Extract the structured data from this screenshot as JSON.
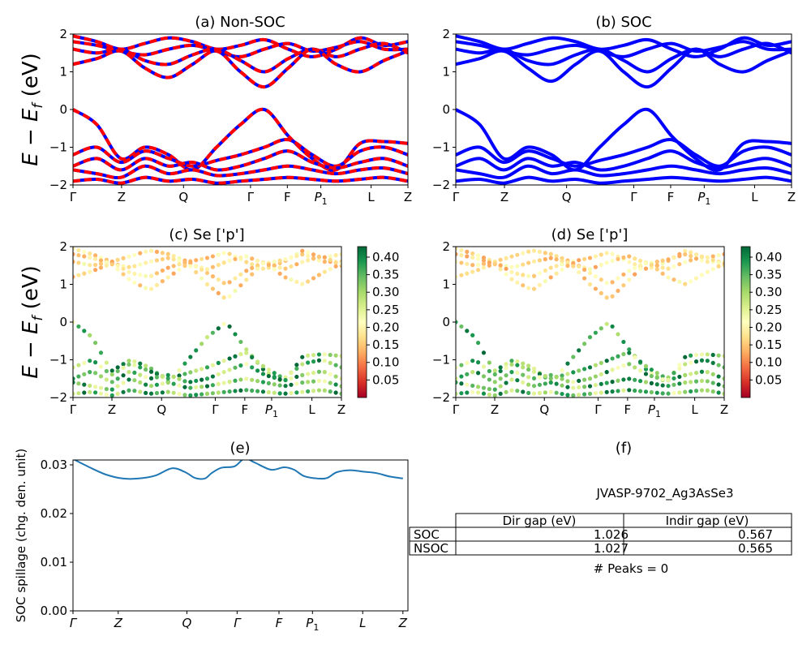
{
  "band_ylabel": "E − E",
  "band_ylabel_sub": "f",
  "band_ylabel_unit": " (eV)",
  "chart_data": [
    {
      "id": "a",
      "type": "line",
      "title": "(a) Non-SOC",
      "ylim": [
        -2,
        2
      ],
      "yticks": [
        -2,
        -1,
        0,
        1,
        2
      ],
      "kpoint_labels": [
        "Γ",
        "Z",
        "Q",
        "Γ",
        "F",
        "P",
        "L",
        "Z"
      ],
      "kpoint_sub": [
        "",
        "",
        "",
        "",
        "",
        "1",
        "",
        ""
      ],
      "kpoint_pos": [
        0,
        0.145,
        0.33,
        0.53,
        0.64,
        0.74,
        0.89,
        1.0
      ],
      "series_colors": [
        "#ff0000",
        "#0000ff"
      ],
      "style": "dashed red over blue",
      "conduction_bands": [
        [
          1.95,
          1.8,
          1.6,
          1.75,
          1.9,
          1.8,
          1.6,
          1.7,
          1.85,
          1.6,
          1.4,
          1.6,
          1.9,
          1.7,
          1.8
        ],
        [
          1.8,
          1.7,
          1.55,
          1.45,
          1.6,
          1.7,
          1.55,
          1.4,
          1.6,
          1.75,
          1.55,
          1.65,
          1.8,
          1.6,
          1.6
        ],
        [
          1.6,
          1.5,
          1.6,
          1.3,
          1.2,
          1.45,
          1.6,
          1.3,
          1.0,
          1.35,
          1.6,
          1.4,
          1.6,
          1.75,
          1.5
        ],
        [
          1.2,
          1.35,
          1.55,
          1.1,
          0.85,
          1.2,
          1.55,
          1.0,
          0.6,
          1.1,
          1.6,
          1.2,
          1.0,
          1.3,
          1.55
        ]
      ],
      "valence_bands": [
        [
          0.0,
          -0.4,
          -1.3,
          -1.0,
          -1.2,
          -1.6,
          -1.0,
          -0.4,
          0.0,
          -0.7,
          -1.3,
          -1.6,
          -0.9,
          -0.85,
          -0.9
        ],
        [
          -1.2,
          -1.0,
          -1.4,
          -1.1,
          -1.3,
          -1.5,
          -1.35,
          -1.2,
          -1.0,
          -0.8,
          -1.2,
          -1.5,
          -1.1,
          -1.0,
          -1.2
        ],
        [
          -1.5,
          -1.3,
          -1.6,
          -1.3,
          -1.5,
          -1.4,
          -1.6,
          -1.5,
          -1.3,
          -1.1,
          -1.4,
          -1.55,
          -1.4,
          -1.3,
          -1.5
        ],
        [
          -1.6,
          -1.7,
          -1.8,
          -1.5,
          -1.7,
          -1.6,
          -1.75,
          -1.7,
          -1.6,
          -1.5,
          -1.6,
          -1.7,
          -1.6,
          -1.55,
          -1.7
        ],
        [
          -1.9,
          -1.85,
          -1.95,
          -1.8,
          -1.9,
          -1.85,
          -1.95,
          -1.9,
          -1.85,
          -1.8,
          -1.85,
          -1.9,
          -1.85,
          -1.8,
          -1.9
        ]
      ]
    },
    {
      "id": "b",
      "type": "line",
      "title": "(b) SOC",
      "ylim": [
        -2,
        2
      ],
      "yticks": [
        -2,
        -1,
        0,
        1,
        2
      ],
      "kpoint_labels": [
        "Γ",
        "Z",
        "Q",
        "Γ",
        "F",
        "P",
        "L",
        "Z"
      ],
      "kpoint_sub": [
        "",
        "",
        "",
        "",
        "",
        "1",
        "",
        ""
      ],
      "kpoint_pos": [
        0,
        0.145,
        0.33,
        0.53,
        0.64,
        0.74,
        0.89,
        1.0
      ],
      "series_colors": [
        "#0000ff"
      ],
      "style": "solid blue",
      "conduction_bands": [
        [
          1.95,
          1.8,
          1.6,
          1.75,
          1.9,
          1.8,
          1.6,
          1.7,
          1.85,
          1.6,
          1.4,
          1.6,
          1.9,
          1.7,
          1.8
        ],
        [
          1.8,
          1.7,
          1.55,
          1.45,
          1.6,
          1.7,
          1.55,
          1.4,
          1.6,
          1.75,
          1.55,
          1.65,
          1.8,
          1.6,
          1.6
        ],
        [
          1.6,
          1.5,
          1.6,
          1.3,
          1.2,
          1.45,
          1.6,
          1.3,
          1.0,
          1.35,
          1.6,
          1.4,
          1.6,
          1.75,
          1.5
        ],
        [
          1.2,
          1.35,
          1.55,
          1.1,
          0.75,
          1.2,
          1.55,
          1.0,
          0.6,
          1.1,
          1.6,
          1.2,
          1.0,
          1.3,
          1.55
        ]
      ],
      "valence_bands": [
        [
          0.0,
          -0.4,
          -1.3,
          -1.0,
          -1.2,
          -1.6,
          -1.0,
          -0.4,
          0.0,
          -0.7,
          -1.3,
          -1.6,
          -0.9,
          -0.85,
          -0.9
        ],
        [
          -1.2,
          -1.0,
          -1.4,
          -1.1,
          -1.3,
          -1.5,
          -1.35,
          -1.2,
          -1.0,
          -0.8,
          -1.2,
          -1.5,
          -1.1,
          -1.0,
          -1.2
        ],
        [
          -1.5,
          -1.3,
          -1.6,
          -1.3,
          -1.5,
          -1.4,
          -1.6,
          -1.5,
          -1.3,
          -1.1,
          -1.4,
          -1.55,
          -1.4,
          -1.3,
          -1.5
        ],
        [
          -1.6,
          -1.7,
          -1.8,
          -1.5,
          -1.7,
          -1.6,
          -1.75,
          -1.7,
          -1.6,
          -1.5,
          -1.6,
          -1.7,
          -1.6,
          -1.55,
          -1.7
        ],
        [
          -1.9,
          -1.85,
          -1.95,
          -1.8,
          -1.9,
          -1.85,
          -1.95,
          -1.9,
          -1.85,
          -1.8,
          -1.85,
          -1.9,
          -1.85,
          -1.8,
          -1.9
        ]
      ]
    },
    {
      "id": "c",
      "type": "scatter",
      "title": "(c)  Se ['p']",
      "ylim": [
        -2,
        2
      ],
      "yticks": [
        -2,
        -1,
        0,
        1,
        2
      ],
      "kpoint_labels": [
        "Γ",
        "Z",
        "Q",
        "Γ",
        "F",
        "P",
        "L",
        "Z"
      ],
      "kpoint_sub": [
        "",
        "",
        "",
        "",
        "",
        "1",
        "",
        ""
      ],
      "kpoint_pos": [
        0,
        0.145,
        0.33,
        0.53,
        0.64,
        0.74,
        0.89,
        1.0
      ],
      "colormap": "RdYlGn",
      "colorbar_ticks": [
        "0.40",
        "0.35",
        "0.30",
        "0.25",
        "0.20",
        "0.15",
        "0.10",
        "0.05"
      ],
      "colorbar_tick_values": [
        0.4,
        0.35,
        0.3,
        0.25,
        0.2,
        0.15,
        0.1,
        0.05
      ],
      "colorbar_range": [
        0.0,
        0.43
      ],
      "conduction_weight": [
        0.18,
        0.12
      ],
      "valence_weight": [
        0.3,
        0.4
      ]
    },
    {
      "id": "d",
      "type": "scatter",
      "title": "(d) Se ['p']",
      "ylim": [
        -2,
        2
      ],
      "yticks": [
        -2,
        -1,
        0,
        1,
        2
      ],
      "kpoint_labels": [
        "Γ",
        "Z",
        "Q",
        "Γ",
        "F",
        "P",
        "L",
        "Z"
      ],
      "kpoint_sub": [
        "",
        "",
        "",
        "",
        "",
        "1",
        "",
        ""
      ],
      "kpoint_pos": [
        0,
        0.145,
        0.33,
        0.53,
        0.64,
        0.74,
        0.89,
        1.0
      ],
      "colormap": "RdYlGn",
      "colorbar_ticks": [
        "0.40",
        "0.35",
        "0.30",
        "0.25",
        "0.20",
        "0.15",
        "0.10",
        "0.05"
      ],
      "colorbar_tick_values": [
        0.4,
        0.35,
        0.3,
        0.25,
        0.2,
        0.15,
        0.1,
        0.05
      ],
      "colorbar_range": [
        0.0,
        0.43
      ],
      "conduction_weight": [
        0.18,
        0.12
      ],
      "valence_weight": [
        0.3,
        0.4
      ]
    },
    {
      "id": "e",
      "type": "line",
      "title": "(e)",
      "ylabel": "SOC spillage (chg. den. unit)",
      "ylim": [
        0,
        0.031
      ],
      "yticks": [
        0.0,
        0.01,
        0.02,
        0.03
      ],
      "ytick_labels": [
        "0.00",
        "0.01",
        "0.02",
        "0.03"
      ],
      "kpoint_labels": [
        "Γ",
        "Z",
        "Q",
        "Γ",
        "F",
        "P",
        "L",
        "Z"
      ],
      "kpoint_sub": [
        "",
        "",
        "",
        "",
        "",
        "1",
        "",
        ""
      ],
      "kpoint_pos": [
        0,
        0.135,
        0.34,
        0.49,
        0.615,
        0.715,
        0.865,
        0.985
      ],
      "series_colors": [
        "#1f77b4"
      ],
      "x": [
        0,
        0.05,
        0.1,
        0.15,
        0.2,
        0.25,
        0.3,
        0.34,
        0.37,
        0.4,
        0.42,
        0.45,
        0.49,
        0.52,
        0.55,
        0.6,
        0.64,
        0.67,
        0.7,
        0.74,
        0.77,
        0.8,
        0.84,
        0.88,
        0.92,
        0.96,
        1.0
      ],
      "values": [
        0.0312,
        0.0295,
        0.028,
        0.0272,
        0.0272,
        0.0278,
        0.0293,
        0.0285,
        0.0273,
        0.0272,
        0.0283,
        0.0294,
        0.0297,
        0.0313,
        0.0305,
        0.029,
        0.0295,
        0.029,
        0.0277,
        0.0272,
        0.0273,
        0.0285,
        0.0289,
        0.0286,
        0.0283,
        0.0276,
        0.0272
      ]
    }
  ],
  "panel_f": {
    "title": "(f)",
    "material": "JVASP-9702_Ag3AsSe3",
    "table": {
      "headers": [
        "Dir gap (eV)",
        "Indir gap (eV)"
      ],
      "rows": [
        {
          "label": "SOC",
          "dir": "1.026",
          "indir": "0.567"
        },
        {
          "label": "NSOC",
          "dir": "1.027",
          "indir": "0.565"
        }
      ]
    },
    "peaks": "# Peaks = 0"
  }
}
